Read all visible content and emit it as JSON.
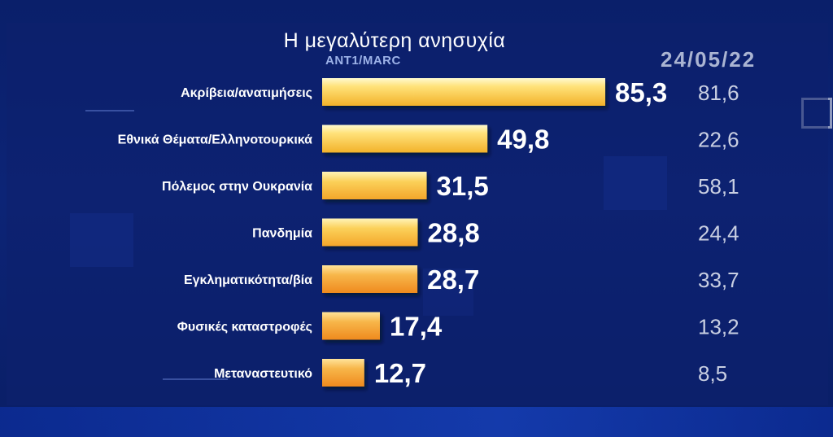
{
  "header": {
    "title": "Η μεγαλύτερη ανησυχία",
    "source": "ANT1/MARC",
    "comparison_date": "24/05/22"
  },
  "colors": {
    "bar_top": "#fff2a8",
    "bar_mid": "#f8c53c",
    "bar_bottom_light": "#f6b33a",
    "bar_bottom_dark": "#f08a1f",
    "background": "#0b2170"
  },
  "chart_data": {
    "type": "bar",
    "orientation": "horizontal",
    "title": "Η μεγαλύτερη ανησυχία",
    "subtitle": "ANT1/MARC",
    "categories": [
      "Ακρίβεια/ανατιμήσεις",
      "Εθνικά Θέματα/Ελληνοτουρκικά",
      "Πόλεμος στην Ουκρανία",
      "Πανδημία",
      "Εγκληματικότητα/βία",
      "Φυσικές καταστροφές",
      "Μεταναστευτικό"
    ],
    "series": [
      {
        "values": [
          85.3,
          49.8,
          31.5,
          28.8,
          28.7,
          17.4,
          12.7
        ],
        "labels": [
          "85,3",
          "49,8",
          "31,5",
          "28,8",
          "28,7",
          "17,4",
          "12,7"
        ]
      },
      {
        "name": "24/05/22",
        "values": [
          81.6,
          22.6,
          58.1,
          24.4,
          33.7,
          13.2,
          8.5
        ],
        "labels": [
          "81,6",
          "22,6",
          "58,1",
          "24,4",
          "33,7",
          "13,2",
          "8,5"
        ]
      }
    ],
    "xlim": [
      0,
      100
    ],
    "grid": false,
    "legend": "none"
  }
}
